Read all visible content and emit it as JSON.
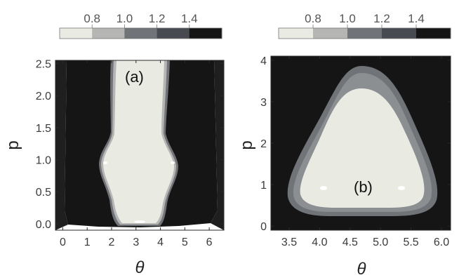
{
  "chart_data": [
    {
      "type": "heatmap",
      "panel_label": "(a)",
      "xlabel": "θ",
      "ylabel": "p",
      "xlim": [
        -0.3,
        6.6
      ],
      "ylim": [
        -0.1,
        2.55
      ],
      "xticks": [
        "0",
        "1",
        "2",
        "3",
        "4",
        "5",
        "6"
      ],
      "yticks": [
        "0.0",
        "0.5",
        "1.0",
        "1.5",
        "2.0",
        "2.5"
      ],
      "colorbar": {
        "ticks": [
          "0.8",
          "1.0",
          "1.2",
          "1.4"
        ],
        "levels": [
          "#e9ebe3",
          "#b5b5b3",
          "#707478",
          "#474a50",
          "#151515"
        ]
      },
      "description_regions": {
        "light_region_theta_range_at_p1": [
          1.7,
          4.5
        ],
        "light_region_theta_range_at_p2": [
          2.2,
          4.0
        ]
      }
    },
    {
      "type": "heatmap",
      "panel_label": "(b)",
      "xlabel": "θ",
      "ylabel": "p",
      "xlim": [
        3.2,
        6.15
      ],
      "ylim": [
        -0.1,
        4.1
      ],
      "xticks": [
        "3.5",
        "4.0",
        "4.5",
        "5.0",
        "5.5",
        "6.0"
      ],
      "yticks": [
        "0",
        "1",
        "2",
        "3",
        "4"
      ],
      "colorbar": {
        "ticks": [
          "0.8",
          "1.0",
          "1.2",
          "1.4"
        ],
        "levels": [
          "#e9ebe3",
          "#b5b5b3",
          "#707478",
          "#474a50",
          "#151515"
        ]
      }
    }
  ],
  "colors": {
    "dark": "#151515",
    "light": "#e9ebe3",
    "band": "#707478",
    "axis": "#2a2a2a"
  }
}
